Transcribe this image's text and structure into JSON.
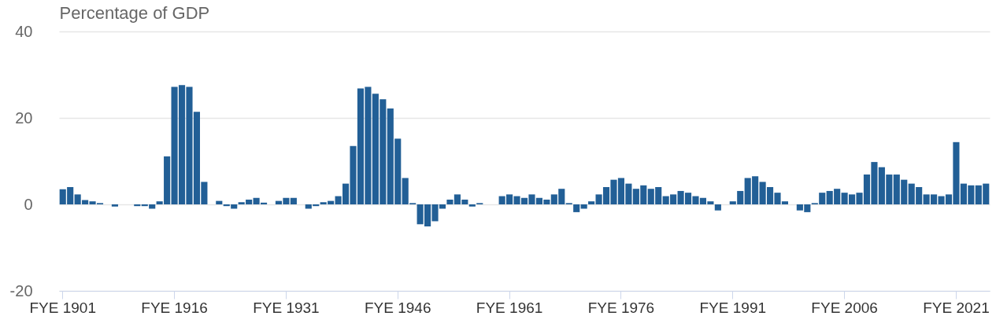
{
  "chart_data": {
    "type": "bar",
    "ylabel": "Percentage of GDP",
    "categories": [
      "FYE 1901",
      null,
      null,
      null,
      null,
      null,
      null,
      null,
      null,
      null,
      null,
      null,
      null,
      null,
      null,
      "FYE 1916",
      null,
      null,
      null,
      null,
      null,
      null,
      null,
      null,
      null,
      null,
      null,
      null,
      null,
      null,
      "FYE 1931",
      null,
      null,
      null,
      null,
      null,
      null,
      null,
      null,
      null,
      null,
      null,
      null,
      null,
      null,
      "FYE 1946",
      null,
      null,
      null,
      null,
      null,
      null,
      null,
      null,
      null,
      null,
      null,
      null,
      null,
      null,
      "FYE 1961",
      null,
      null,
      null,
      null,
      null,
      null,
      null,
      null,
      null,
      null,
      null,
      null,
      null,
      null,
      "FYE 1976",
      null,
      null,
      null,
      null,
      null,
      null,
      null,
      null,
      null,
      null,
      null,
      null,
      null,
      null,
      "FYE 1991",
      null,
      null,
      null,
      null,
      null,
      null,
      null,
      null,
      null,
      null,
      null,
      null,
      null,
      null,
      "FYE 2006",
      null,
      null,
      null,
      null,
      null,
      null,
      null,
      null,
      null,
      null,
      null,
      null,
      null,
      null,
      "FYE 2021",
      null,
      null,
      null,
      null
    ],
    "values": [
      3.5,
      4.0,
      2.3,
      1.0,
      0.7,
      0.3,
      0,
      -0.5,
      0,
      0,
      -0.4,
      -0.4,
      -1.0,
      0.7,
      11.1,
      27.2,
      27.6,
      27.2,
      21.4,
      5.2,
      0,
      0.8,
      -0.4,
      -1.0,
      0.5,
      1.1,
      1.5,
      0.4,
      0,
      0.8,
      1.5,
      1.5,
      0,
      -1.0,
      -0.4,
      0.5,
      0.8,
      1.9,
      4.8,
      13.5,
      26.8,
      27.2,
      25.6,
      24.3,
      22.2,
      15.2,
      6.1,
      0.3,
      -4.6,
      -5.1,
      -3.9,
      -1.0,
      1.1,
      2.3,
      1.1,
      -0.5,
      0.3,
      0,
      0,
      1.9,
      2.3,
      1.9,
      1.5,
      2.3,
      1.5,
      1.1,
      2.3,
      3.6,
      0.3,
      -1.8,
      -1.0,
      0.7,
      2.3,
      4.0,
      5.7,
      6.1,
      4.8,
      3.6,
      4.4,
      3.6,
      4.0,
      1.9,
      2.3,
      3.1,
      2.7,
      1.9,
      1.5,
      0.7,
      -1.4,
      0,
      0.7,
      3.1,
      6.1,
      6.5,
      5.2,
      4.0,
      2.7,
      0.7,
      0,
      -1.4,
      -1.8,
      0.3,
      2.7,
      3.1,
      3.6,
      2.7,
      2.3,
      2.7,
      6.9,
      9.8,
      8.6,
      6.9,
      6.9,
      5.7,
      4.8,
      4.0,
      2.3,
      2.3,
      1.9,
      2.3,
      14.4,
      4.8,
      4.4,
      4.4,
      4.8
    ],
    "color": "#225f96",
    "ylim": [
      -20,
      40
    ],
    "yticks": [
      -20,
      0,
      20,
      40
    ],
    "grid": "y"
  }
}
